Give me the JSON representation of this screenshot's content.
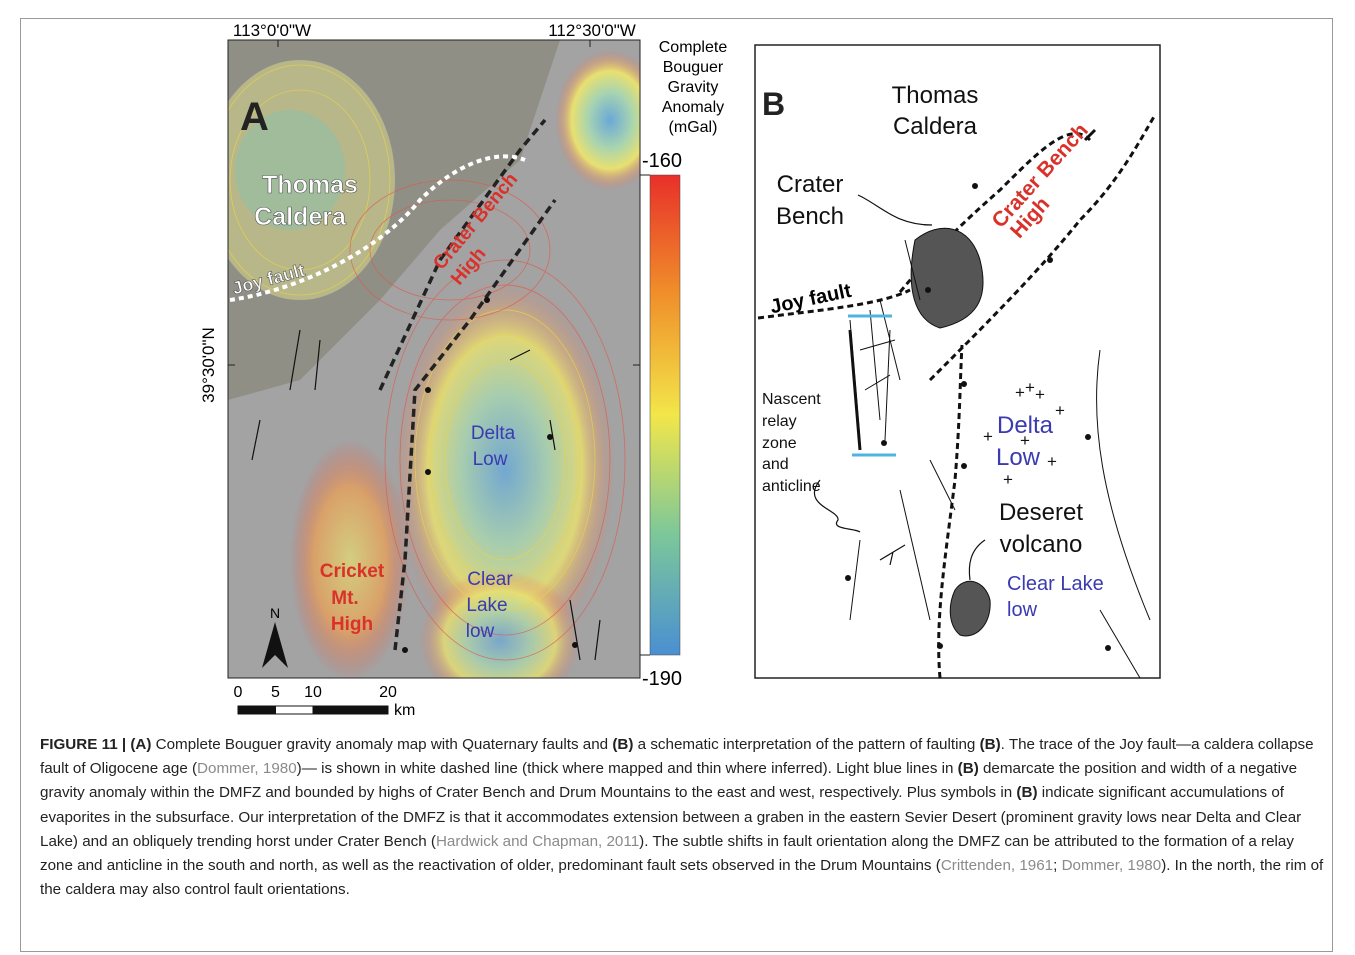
{
  "panel_a": {
    "letter": "A",
    "longitude_labels": [
      "113°0'0\"W",
      "112°30'0\"W"
    ],
    "latitude_label": "39°30'0\"N",
    "colorbar": {
      "title": [
        "Complete",
        "Bouguer",
        "Gravity",
        "Anomaly",
        "(mGal)"
      ],
      "ticks": [
        -160,
        -190
      ]
    },
    "scale": {
      "ticks": [
        0,
        5,
        10,
        20
      ],
      "unit": "km"
    },
    "north": "N",
    "labels": {
      "thomas_caldera": [
        "Thomas",
        "Caldera"
      ],
      "joy_fault": "Joy fault",
      "crater_bench_high": [
        "Crater Bench",
        "High"
      ],
      "delta_low": [
        "Delta",
        "Low"
      ],
      "cricket_mt_high": [
        "Cricket",
        "Mt.",
        "High"
      ],
      "clear_lake_low": [
        "Clear",
        "Lake",
        "low"
      ]
    }
  },
  "panel_b": {
    "letter": "B",
    "labels": {
      "thomas_caldera": [
        "Thomas",
        "Caldera"
      ],
      "crater_bench": [
        "Crater",
        "Bench"
      ],
      "crater_bench_high": [
        "Crater Bench",
        "High"
      ],
      "joy_fault": "Joy fault",
      "nascent": [
        "Nascent",
        "relay",
        "zone",
        "and",
        "anticline"
      ],
      "delta_low": [
        "Delta",
        "Low"
      ],
      "deseret_volcano": [
        "Deseret",
        "volcano"
      ],
      "clear_lake_low": [
        "Clear Lake",
        "low"
      ]
    }
  },
  "caption": [
    "FIGURE 11 | (A)",
    " Complete Bouguer gravity anomaly map with Quaternary faults and ",
    "(B)",
    " a schematic interpretation of the pattern of faulting ",
    "(B)",
    ". The trace of the Joy fault—a caldera collapse fault of Oligocene age (",
    "Dommer, 1980",
    ")— is shown in white dashed line (thick where mapped and thin where inferred). Light blue lines in ",
    "(B)",
    " demarcate the position and width of a negative gravity anomaly within the DMFZ and bounded by highs of Crater Bench and Drum Mountains to the east and west, respectively. Plus symbols in ",
    "(B)",
    " indicate significant accumulations of evaporites in the subsurface. Our interpretation of the DMFZ is that it accommodates extension between a graben in the eastern Sevier Desert (prominent gravity lows near Delta and Clear Lake) and an obliquely trending horst under Crater Bench (",
    "Hardwick and Chapman, 2011",
    "). The subtle shifts in fault orientation along the DMFZ can be attributed to the formation of a relay zone and anticline in the south and north, as well as the reactivation of older, predominant fault sets observed in the Drum Mountains (",
    "Crittenden, 1961",
    "; ",
    "Dommer, 1980",
    "). In the north, the rim of the caldera may also control fault orientations."
  ]
}
